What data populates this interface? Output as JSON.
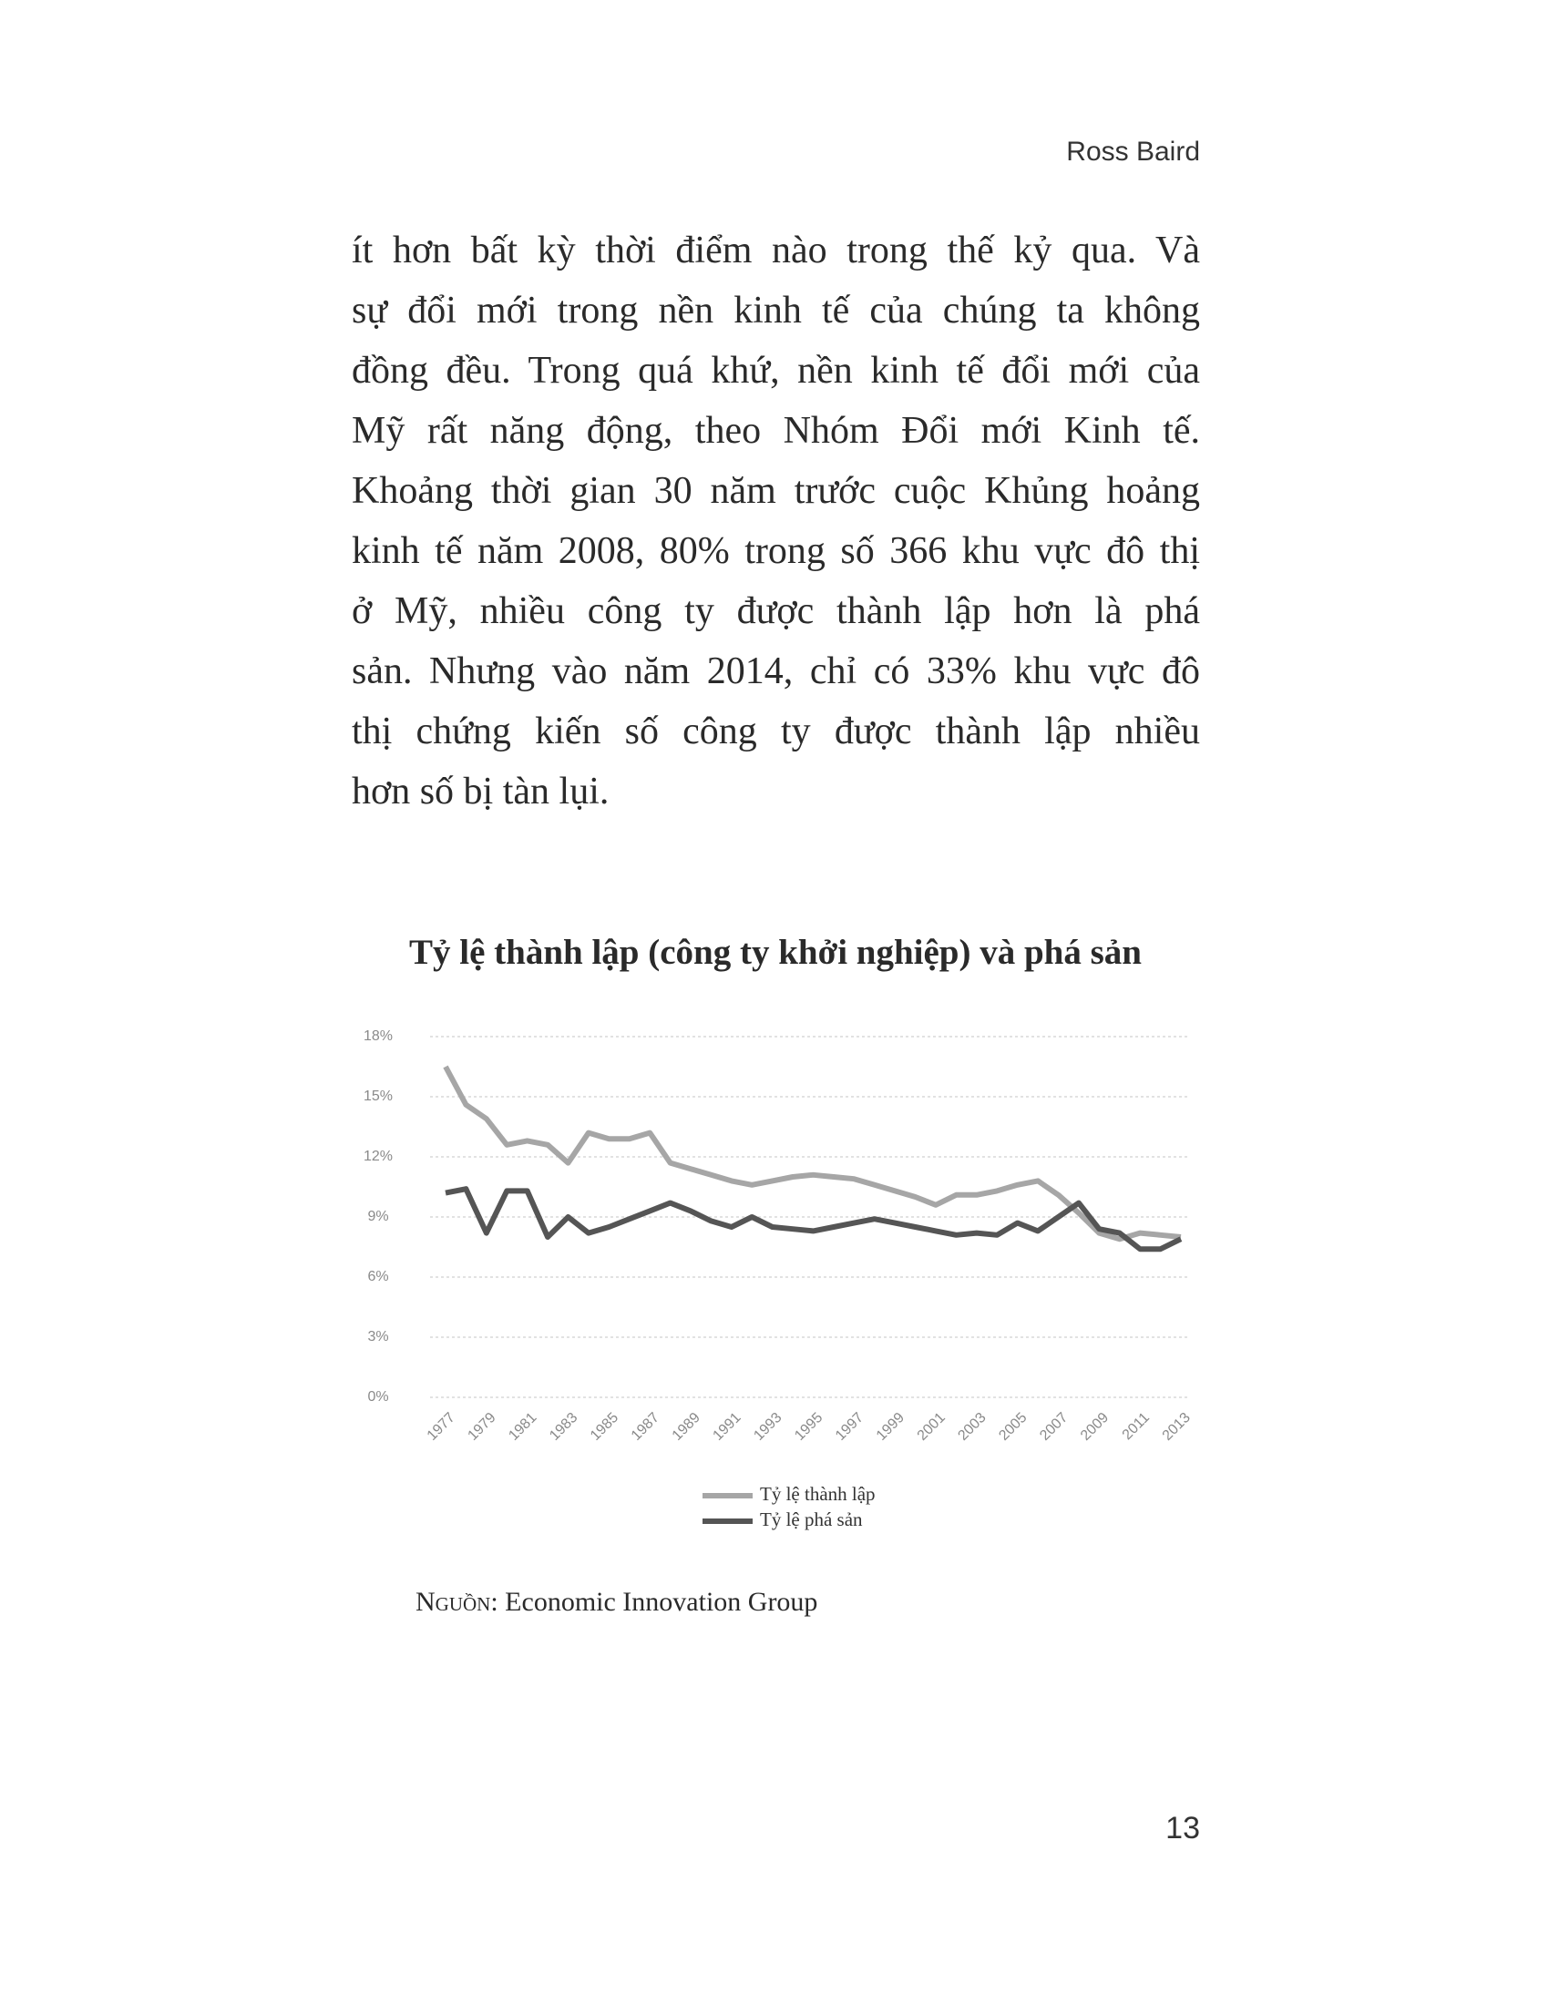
{
  "header": {
    "author": "Ross Baird"
  },
  "body": {
    "lines": [
      "ít hơn bất kỳ thời điểm nào trong thế kỷ qua. Và",
      "sự đổi mới trong nền kinh tế của chúng ta không",
      "đồng đều. Trong quá khứ, nền kinh tế đổi mới của",
      "Mỹ rất năng động, theo Nhóm Đổi mới Kinh tế.",
      "Khoảng thời gian 30 năm trước cuộc Khủng hoảng",
      "kinh tế năm 2008, 80% trong số 366 khu vực đô thị",
      "ở Mỹ, nhiều công ty được thành lập hơn là phá",
      "sản. Nhưng vào năm 2014, chỉ có 33% khu vực đô",
      "thị chứng kiến số công ty được thành lập nhiều",
      "hơn số bị tàn lụi."
    ]
  },
  "chart_data": {
    "type": "line",
    "title": "Tỷ lệ thành lập (công ty khởi nghiệp) và phá sản",
    "x": [
      1977,
      1978,
      1979,
      1980,
      1981,
      1982,
      1983,
      1984,
      1985,
      1986,
      1987,
      1988,
      1989,
      1990,
      1991,
      1992,
      1993,
      1994,
      1995,
      1996,
      1997,
      1998,
      1999,
      2000,
      2001,
      2002,
      2003,
      2004,
      2005,
      2006,
      2007,
      2008,
      2009,
      2010,
      2011,
      2012,
      2013
    ],
    "xlim": [
      1977,
      2013
    ],
    "xticks": [
      1977,
      1979,
      1981,
      1983,
      1985,
      1987,
      1989,
      1991,
      1993,
      1995,
      1997,
      1999,
      2001,
      2003,
      2005,
      2007,
      2009,
      2011,
      2013
    ],
    "ylim": [
      0,
      18
    ],
    "yticks": [
      {
        "value": 0,
        "label": "0%"
      },
      {
        "value": 3,
        "label": "3%"
      },
      {
        "value": 6,
        "label": "6%"
      },
      {
        "value": 9,
        "label": "9%"
      },
      {
        "value": 12,
        "label": "12%"
      },
      {
        "value": 15,
        "label": "15%"
      },
      {
        "value": 18,
        "label": "18%"
      }
    ],
    "grid": true,
    "legend": "bottom",
    "series": [
      {
        "name": "Tỷ lệ thành lập",
        "color": "#a6a6a6",
        "values": [
          16.5,
          14.6,
          13.9,
          12.6,
          12.8,
          12.6,
          11.7,
          13.2,
          12.9,
          12.9,
          13.2,
          11.7,
          11.4,
          11.1,
          10.8,
          10.6,
          10.8,
          11.0,
          11.1,
          11.0,
          10.9,
          10.6,
          10.3,
          10.0,
          9.6,
          10.1,
          10.1,
          10.3,
          10.6,
          10.8,
          10.1,
          9.2,
          8.2,
          7.9,
          8.2,
          8.1,
          8.0
        ]
      },
      {
        "name": "Tỷ lệ phá sản",
        "color": "#555555",
        "values": [
          10.2,
          10.4,
          8.2,
          10.3,
          10.3,
          8.0,
          9.0,
          8.2,
          8.5,
          8.9,
          9.3,
          9.7,
          9.3,
          8.8,
          8.5,
          9.0,
          8.5,
          8.4,
          8.3,
          8.5,
          8.7,
          8.9,
          8.7,
          8.5,
          8.3,
          8.1,
          8.2,
          8.1,
          8.7,
          8.3,
          9.0,
          9.7,
          8.4,
          8.2,
          7.4,
          7.4,
          7.9
        ]
      }
    ]
  },
  "source": {
    "label": "Nguồn:",
    "text": "Economic Innovation Group"
  },
  "footer": {
    "page_number": "13"
  }
}
